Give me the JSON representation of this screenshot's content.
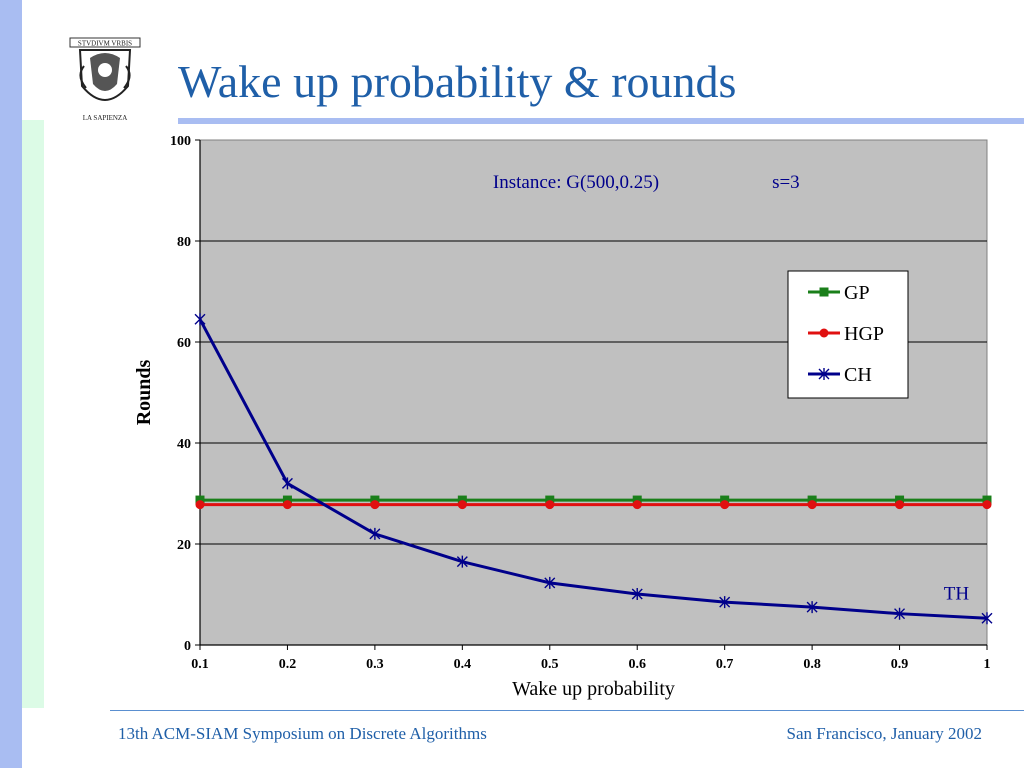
{
  "slide": {
    "title": "Wake up probability & rounds",
    "footer_left": "13th ACM-SIAM Symposium on Discrete Algorithms",
    "footer_right": "San Francisco, January 2002",
    "logo": {
      "icon": "university-seal-icon",
      "banner_text": "STVDIVM VRBIS",
      "caption": "LA SAPIENZA"
    }
  },
  "colors": {
    "accent_bar": "#a9bdf2",
    "title": "#1f5fa8",
    "plot_bg": "#c0c0c0",
    "gp": "#1a7f1a",
    "hgp": "#e01010",
    "ch": "#00008b"
  },
  "chart_data": {
    "type": "line",
    "xlabel": "Wake up probability",
    "ylabel": "Rounds",
    "xlim": [
      0.1,
      1
    ],
    "ylim": [
      0,
      100
    ],
    "x": [
      0.1,
      0.2,
      0.3,
      0.4,
      0.5,
      0.6,
      0.7,
      0.8,
      0.9,
      1
    ],
    "x_ticks": [
      "0.1",
      "0.2",
      "0.3",
      "0.4",
      "0.5",
      "0.6",
      "0.7",
      "0.8",
      "0.9",
      "1"
    ],
    "y_ticks": [
      0,
      20,
      40,
      60,
      80,
      100
    ],
    "grid": "horizontal",
    "legend_position": "right",
    "annotations": [
      {
        "text": "Instance: G(500,0.25)",
        "x": 0.53,
        "y": 90.5
      },
      {
        "text": "s=3",
        "x": 0.77,
        "y": 90.5
      },
      {
        "text": "TH",
        "x": 0.965,
        "y": 9
      }
    ],
    "series": [
      {
        "name": "GP",
        "marker": "square",
        "values": [
          28.7,
          28.7,
          28.7,
          28.7,
          28.7,
          28.7,
          28.7,
          28.7,
          28.7,
          28.7
        ]
      },
      {
        "name": "HGP",
        "marker": "circle",
        "values": [
          27.8,
          27.8,
          27.8,
          27.8,
          27.8,
          27.8,
          27.8,
          27.8,
          27.8,
          27.8
        ]
      },
      {
        "name": "CH",
        "marker": "star",
        "values": [
          64.5,
          32,
          22,
          16.5,
          12.3,
          10.1,
          8.5,
          7.5,
          6.2,
          5.3
        ]
      }
    ]
  }
}
